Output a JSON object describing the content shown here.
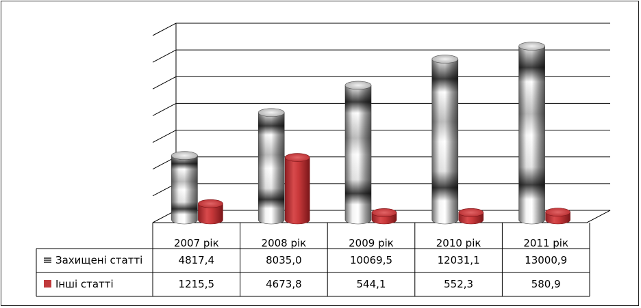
{
  "chart_data": {
    "type": "bar",
    "style": "3d-cylinder-with-data-table",
    "categories": [
      "2007 рік",
      "2008 рік",
      "2009 рік",
      "2010 рік",
      "2011 рік"
    ],
    "series": [
      {
        "name": "Захищені статті",
        "values": [
          4817.4,
          8035.0,
          10069.5,
          12031.1,
          13000.9
        ],
        "labels": [
          "4817,4",
          "8035,0",
          "10069,5",
          "12031,1",
          "13000,9"
        ],
        "color": "#b0b0b0"
      },
      {
        "name": "Інші статті",
        "values": [
          1215.5,
          4673.8,
          544.1,
          552.3,
          580.9
        ],
        "labels": [
          "1215,5",
          "4673,8",
          "544,1",
          "552,3",
          "580,9"
        ],
        "color": "#c0393b"
      }
    ],
    "ylim": [
      0,
      14000
    ],
    "y_gridlines": 7,
    "grid": true,
    "y_tick_labels_shown": false,
    "legend": "in-table"
  }
}
